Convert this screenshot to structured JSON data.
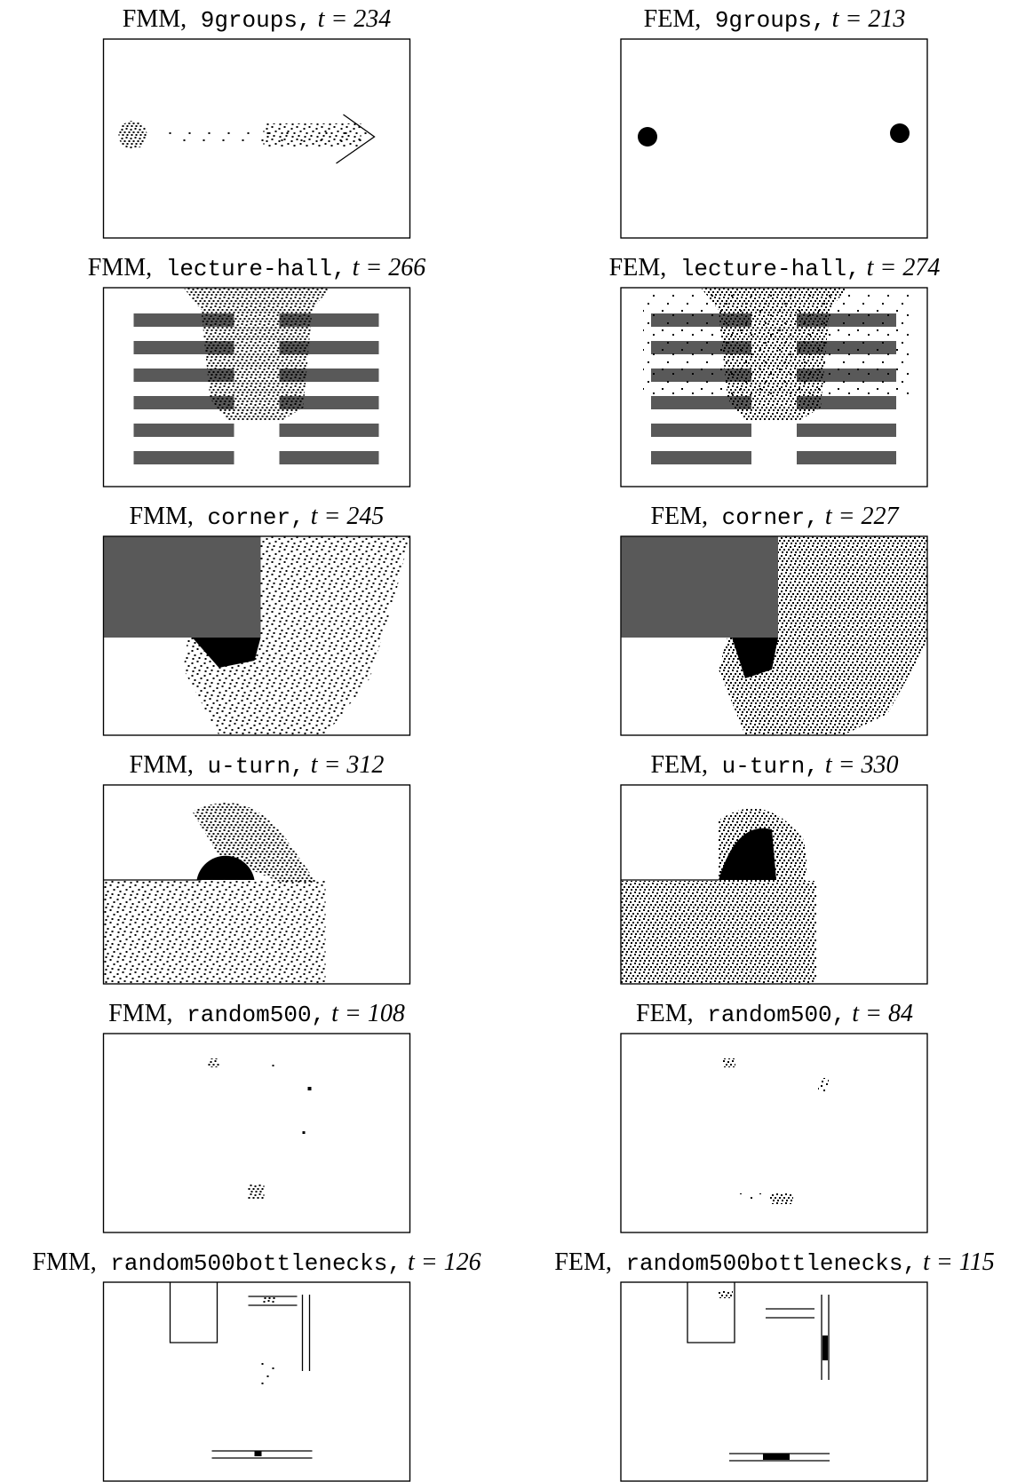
{
  "panels": [
    {
      "method": "FMM,",
      "scenario": "9groups,",
      "time": "t = 234"
    },
    {
      "method": "FEM,",
      "scenario": "9groups,",
      "time": "t = 213"
    },
    {
      "method": "FMM,",
      "scenario": "lecture-hall,",
      "time": "t = 266"
    },
    {
      "method": "FEM,",
      "scenario": "lecture-hall,",
      "time": "t = 274"
    },
    {
      "method": "FMM,",
      "scenario": "corner,",
      "time": "t = 245"
    },
    {
      "method": "FEM,",
      "scenario": "corner,",
      "time": "t = 227"
    },
    {
      "method": "FMM,",
      "scenario": "u-turn,",
      "time": "t = 312"
    },
    {
      "method": "FEM,",
      "scenario": "u-turn,",
      "time": "t = 330"
    },
    {
      "method": "FMM,",
      "scenario": "random500,",
      "time": "t = 108"
    },
    {
      "method": "FEM,",
      "scenario": "random500,",
      "time": "t = 84"
    },
    {
      "method": "FMM,",
      "scenario": "random500bottlenecks,",
      "time": "t = 126"
    },
    {
      "method": "FEM,",
      "scenario": "random500bottlenecks,",
      "time": "t = 115"
    }
  ]
}
